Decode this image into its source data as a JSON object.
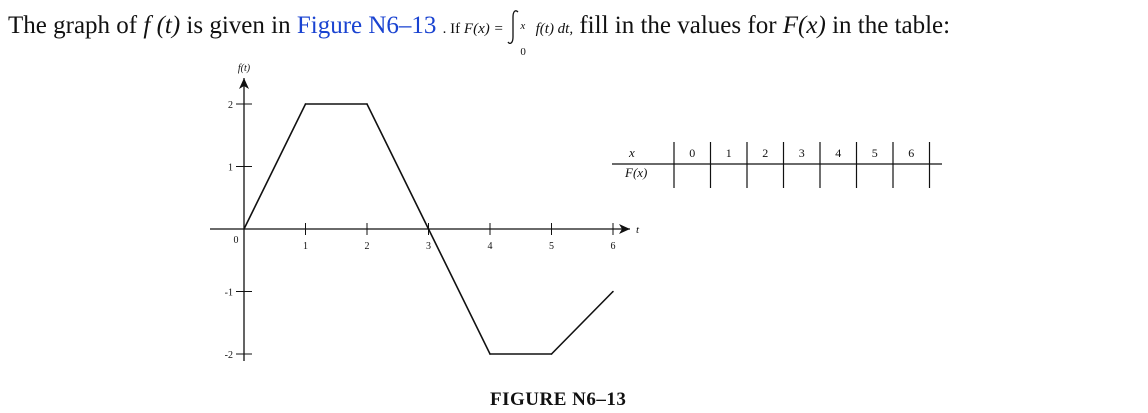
{
  "problem": {
    "part1": "The graph of",
    "ft": "f (t)",
    "part2": " is given in ",
    "figure_ref": "Figure N6–13",
    "part3": ". If ",
    "Fx_def": "F(x) = ",
    "upper": "x",
    "lower": "0",
    "integrand": "f(t) dt,",
    "part4": " fill in the values for ",
    "Fx": "F(x)",
    "part5": " in the table:"
  },
  "chart_data": {
    "type": "line",
    "title": "",
    "xlabel": "t",
    "ylabel": "f(t)",
    "origin_label": "0",
    "x": [
      0,
      1,
      2,
      3,
      4,
      5,
      6
    ],
    "y": [
      0,
      2,
      2,
      0,
      -2,
      -2,
      -1
    ],
    "x_ticks": [
      "1",
      "2",
      "3",
      "4",
      "5",
      "6"
    ],
    "y_ticks": [
      "2",
      "1",
      "-1",
      "-2"
    ],
    "xlim": [
      0,
      6.5
    ],
    "ylim": [
      -2.2,
      2.3
    ],
    "grid": false
  },
  "table": {
    "row1_label": "x",
    "row2_label": "F(x)",
    "columns": [
      "0",
      "1",
      "2",
      "3",
      "4",
      "5",
      "6"
    ]
  },
  "caption": "FIGURE N6–13",
  "colors": {
    "link": "#1a43d1",
    "ink": "#111111"
  }
}
